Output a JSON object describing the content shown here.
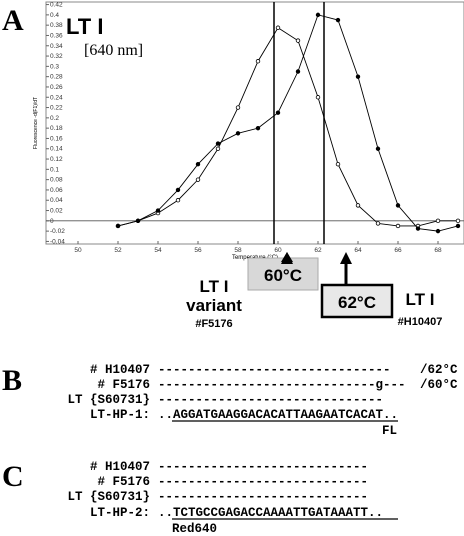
{
  "panel_a": {
    "label": "A"
  },
  "chart_data": {
    "type": "line",
    "title": "LT I",
    "subtitle": "[640 nm]",
    "x_label": "Temperature (°C)",
    "y_label": "Fluorescence -d(F1)/dT",
    "x": [
      52,
      53,
      54,
      55,
      56,
      57,
      58,
      59,
      60,
      61,
      62,
      63,
      64,
      65,
      66,
      67,
      68,
      69
    ],
    "series": [
      {
        "color": "#000000",
        "marker": "open",
        "values": [
          -0.01,
          0.0,
          0.015,
          0.04,
          0.08,
          0.14,
          0.22,
          0.31,
          0.375,
          0.35,
          0.24,
          0.11,
          0.03,
          -0.005,
          -0.01,
          -0.01,
          0.0,
          0.0
        ]
      },
      {
        "color": "#000000",
        "marker": "filled",
        "values": [
          -0.01,
          0.0,
          0.02,
          0.06,
          0.11,
          0.15,
          0.17,
          0.18,
          0.21,
          0.29,
          0.4,
          0.39,
          0.28,
          0.14,
          0.03,
          -0.015,
          -0.02,
          -0.01
        ]
      }
    ],
    "xlim": [
      48.4,
      69.3
    ],
    "ylim": [
      -0.045,
      0.425
    ],
    "xticks": [
      50,
      52,
      54,
      56,
      58,
      60,
      62,
      64,
      66,
      68
    ],
    "yticks": [
      0.42,
      0.4,
      0.38,
      0.36,
      0.34,
      0.32,
      0.3,
      0.28,
      0.26,
      0.24,
      0.22,
      0.2,
      0.18,
      0.16,
      0.14,
      0.12,
      0.1,
      0.08,
      0.06,
      0.04,
      0.02,
      0,
      -0.02,
      -0.04
    ],
    "peak_lines": [
      59.8,
      62.3
    ],
    "peaks": [
      {
        "temp": "60°C",
        "name": [
          "LT I",
          "variant"
        ],
        "strain": "#F5176"
      },
      {
        "temp": "62°C",
        "name": [
          "LT I"
        ],
        "strain": "#H10407"
      }
    ]
  },
  "panel_b": {
    "label": "B",
    "rows": [
      {
        "name": "# H10407",
        "sequence": "-------------------------------",
        "tm": "/62°C"
      },
      {
        "name": "#  F5176",
        "sequence": "-----------------------------g---",
        "tm": "/60°C"
      },
      {
        "name": "LT {S60731}",
        "sequence": "------------------------------"
      },
      {
        "name": "LT-HP-1:",
        "sequence": "..AGGATGAAGGACACATTAAGAATCACAT.."
      }
    ],
    "probe_label": "FL"
  },
  "panel_c": {
    "label": "C",
    "rows": [
      {
        "name": "# H10407",
        "sequence": "----------------------------"
      },
      {
        "name": "#  F5176",
        "sequence": "----------------------------"
      },
      {
        "name": "LT {S60731}",
        "sequence": "----------------------------"
      },
      {
        "name": "LT-HP-2:",
        "sequence": "..TCTGCCGAGACCAAAATTGATAAATT.."
      }
    ],
    "probe_label": "Red640"
  }
}
